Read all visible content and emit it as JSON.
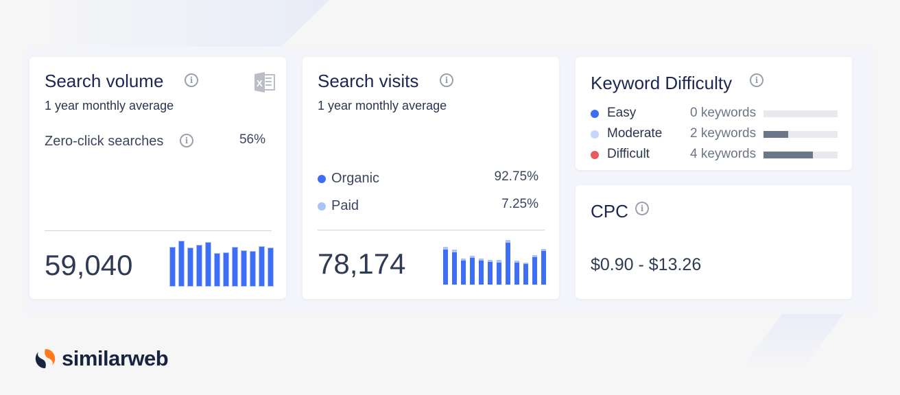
{
  "search_volume": {
    "title": "Search volume",
    "subtitle": "1 year monthly average",
    "zero_click_label": "Zero-click searches",
    "zero_click_value": "56%",
    "total": "59,040",
    "export_icon": "excel-icon",
    "bars": [
      56,
      65,
      55,
      59,
      63,
      47,
      48,
      56,
      51,
      50,
      57,
      55
    ]
  },
  "search_visits": {
    "title": "Search visits",
    "subtitle": "1 year monthly average",
    "organic_label": "Organic",
    "organic_value": "92.75%",
    "paid_label": "Paid",
    "paid_value": "7.25%",
    "total": "78,174",
    "organic_bars": [
      51,
      47,
      35,
      39,
      35,
      33,
      32,
      61,
      32,
      30,
      40,
      49
    ],
    "paid_bars": [
      4,
      4,
      3,
      3,
      3,
      3,
      4,
      4,
      3,
      2,
      3,
      3
    ]
  },
  "keyword_difficulty": {
    "title": "Keyword Difficulty",
    "rows": [
      {
        "label": "Easy",
        "count": "0 keywords",
        "fraction": 0,
        "color": "#3e6ef5"
      },
      {
        "label": "Moderate",
        "count": "2 keywords",
        "fraction": 0.33,
        "color": "#c5d6fb"
      },
      {
        "label": "Difficult",
        "count": "4 keywords",
        "fraction": 0.67,
        "color": "#e55c5c"
      }
    ]
  },
  "cpc": {
    "title": "CPC",
    "range": "$0.90 - $13.26"
  },
  "brand": {
    "name": "similarweb"
  },
  "colors": {
    "organic": "#3e6ef5",
    "paid": "#aac4fb"
  }
}
